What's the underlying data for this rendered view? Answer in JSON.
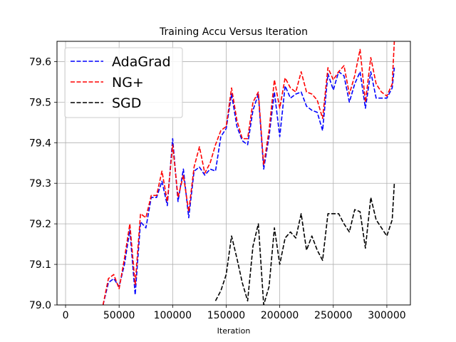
{
  "chart_data": {
    "type": "line",
    "title": "Training Accu Versus Iteration",
    "xlabel": "Iteration",
    "ylabel": "",
    "xlim": [
      -8000,
      322000
    ],
    "ylim": [
      79.0,
      79.65
    ],
    "xticks": [
      0,
      50000,
      100000,
      150000,
      200000,
      250000,
      300000
    ],
    "yticks": [
      79.0,
      79.1,
      79.2,
      79.3,
      79.4,
      79.5,
      79.6
    ],
    "xtick_labels": [
      "0",
      "50000",
      "100000",
      "150000",
      "200000",
      "250000",
      "300000"
    ],
    "ytick_labels": [
      "79.0",
      "79.1",
      "79.2",
      "79.3",
      "79.4",
      "79.5",
      "79.6"
    ],
    "grid": true,
    "legend_position": "top-left",
    "series": [
      {
        "name": "AdaGrad",
        "color": "#0000ff",
        "line_style": "dashed",
        "x": [
          35000,
          40000,
          45000,
          50000,
          55000,
          60000,
          65000,
          70000,
          75000,
          80000,
          85000,
          90000,
          95000,
          100000,
          105000,
          110000,
          115000,
          120000,
          125000,
          130000,
          135000,
          140000,
          145000,
          150000,
          155000,
          160000,
          165000,
          170000,
          175000,
          180000,
          185000,
          190000,
          195000,
          200000,
          205000,
          210000,
          215000,
          220000,
          225000,
          230000,
          235000,
          240000,
          245000,
          250000,
          255000,
          260000,
          265000,
          270000,
          275000,
          280000,
          285000,
          290000,
          295000,
          300000,
          305000,
          307000
        ],
        "y": [
          79.0,
          79.055,
          79.065,
          79.045,
          79.1,
          79.185,
          79.025,
          79.205,
          79.19,
          79.265,
          79.265,
          79.305,
          79.245,
          79.41,
          79.255,
          79.335,
          79.215,
          79.33,
          79.34,
          79.32,
          79.335,
          79.33,
          79.415,
          79.435,
          79.52,
          79.44,
          79.405,
          79.395,
          79.48,
          79.52,
          79.335,
          79.415,
          79.525,
          79.415,
          79.54,
          79.51,
          79.52,
          79.525,
          79.49,
          79.48,
          79.475,
          79.43,
          79.57,
          79.53,
          79.575,
          79.565,
          79.5,
          79.545,
          79.575,
          79.485,
          79.575,
          79.51,
          79.51,
          79.51,
          79.535,
          79.585
        ]
      },
      {
        "name": "NG+",
        "color": "#ff0000",
        "line_style": "dashed",
        "x": [
          35000,
          40000,
          45000,
          50000,
          55000,
          60000,
          65000,
          70000,
          75000,
          80000,
          85000,
          90000,
          95000,
          100000,
          105000,
          110000,
          115000,
          120000,
          125000,
          130000,
          135000,
          140000,
          145000,
          150000,
          155000,
          160000,
          165000,
          170000,
          175000,
          180000,
          185000,
          190000,
          195000,
          200000,
          205000,
          210000,
          215000,
          220000,
          225000,
          230000,
          235000,
          240000,
          245000,
          250000,
          255000,
          260000,
          265000,
          270000,
          275000,
          280000,
          285000,
          290000,
          295000,
          300000,
          305000,
          307000
        ],
        "y": [
          79.0,
          79.065,
          79.075,
          79.04,
          79.115,
          79.2,
          79.05,
          79.225,
          79.215,
          79.27,
          79.27,
          79.33,
          79.255,
          79.395,
          79.265,
          79.32,
          79.23,
          79.34,
          79.39,
          79.325,
          79.35,
          79.395,
          79.43,
          79.44,
          79.535,
          79.455,
          79.41,
          79.41,
          79.5,
          79.525,
          79.345,
          79.43,
          79.555,
          79.485,
          79.56,
          79.535,
          79.525,
          79.575,
          79.525,
          79.52,
          79.505,
          79.46,
          79.585,
          79.555,
          79.575,
          79.59,
          79.52,
          79.565,
          79.63,
          79.5,
          79.61,
          79.545,
          79.525,
          79.515,
          79.545,
          79.65
        ]
      },
      {
        "name": "SGD",
        "color": "#000000",
        "line_style": "dashed",
        "x": [
          140000,
          145000,
          150000,
          155000,
          160000,
          165000,
          170000,
          175000,
          180000,
          185000,
          190000,
          195000,
          200000,
          205000,
          210000,
          215000,
          220000,
          225000,
          230000,
          235000,
          240000,
          245000,
          250000,
          255000,
          260000,
          265000,
          270000,
          275000,
          280000,
          285000,
          290000,
          295000,
          300000,
          305000,
          307000
        ],
        "y": [
          79.01,
          79.035,
          79.075,
          79.17,
          79.115,
          79.055,
          79.01,
          79.145,
          79.2,
          79.0,
          79.045,
          79.19,
          79.1,
          79.165,
          79.18,
          79.165,
          79.225,
          79.135,
          79.17,
          79.135,
          79.11,
          79.225,
          79.225,
          79.225,
          79.2,
          79.18,
          79.235,
          79.23,
          79.14,
          79.265,
          79.21,
          79.19,
          79.17,
          79.21,
          79.3
        ]
      }
    ]
  }
}
